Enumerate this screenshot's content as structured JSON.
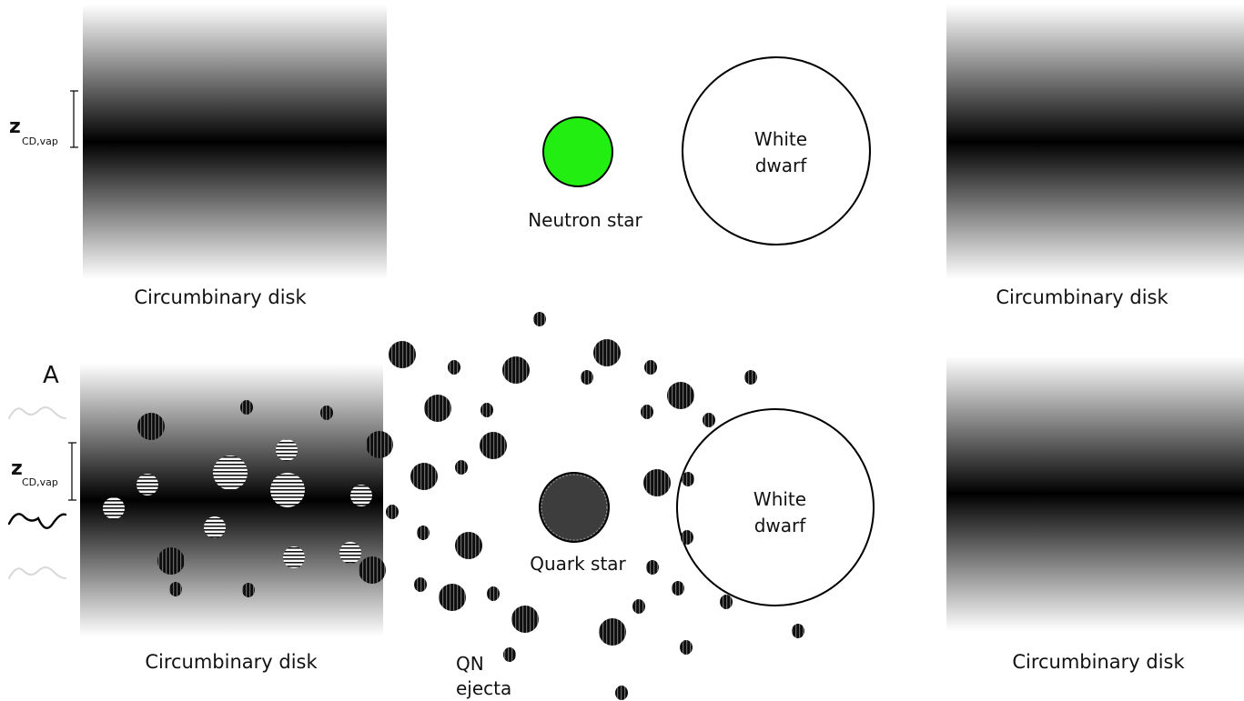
{
  "top_panel": {
    "disk_left_label": "Circumbinary disk",
    "disk_right_label": "Circumbinary disk",
    "scale_label_main": "z",
    "scale_label_sub": "CD,vap",
    "neutron_star_label": "Neutron star",
    "white_dwarf_label_line1": "White",
    "white_dwarf_label_line2": "dwarf"
  },
  "bottom_panel": {
    "panel_letter": "A",
    "disk_left_label": "Circumbinary disk",
    "disk_right_label": "Circumbinary disk",
    "scale_label_main": "z",
    "scale_label_sub": "CD,vap",
    "quark_star_label": "Quark star",
    "white_dwarf_label_line1": "White",
    "white_dwarf_label_line2": "dwarf",
    "ejecta_label_line1": "QN",
    "ejecta_label_line2": "ejecta"
  },
  "colors": {
    "neutron_star": "#22ee11",
    "quark_star": "#3d3d3d",
    "disk_core": "#000000",
    "ejecta": "#1a1a1a"
  }
}
